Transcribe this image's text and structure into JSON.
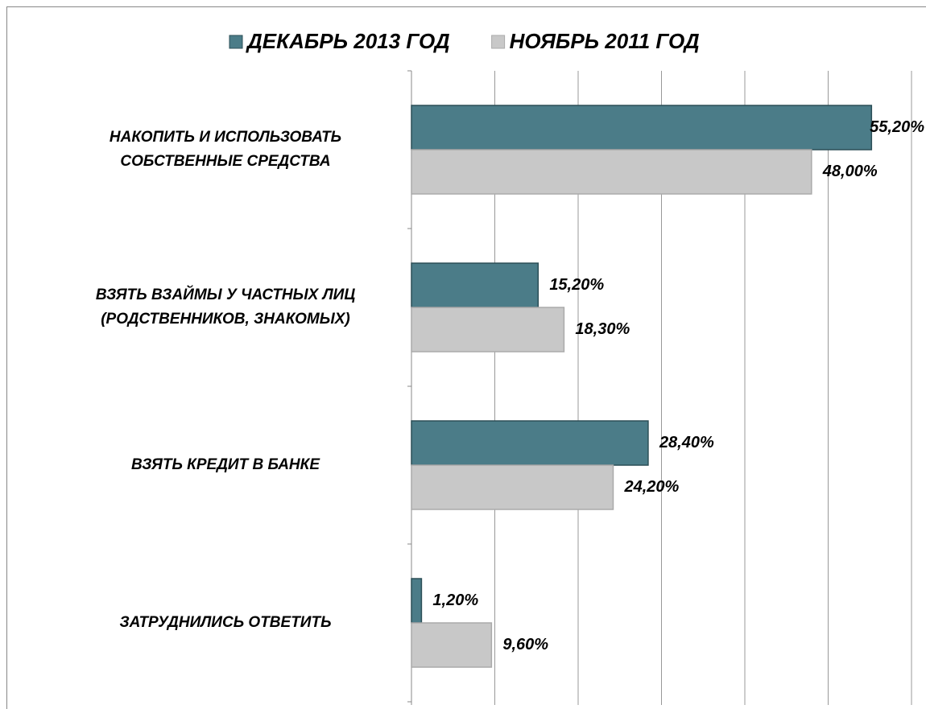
{
  "chart_data": {
    "type": "hbar",
    "categories": [
      "НАКОПИТЬ И ИСПОЛЬЗОВАТЬ\nСОБСТВЕННЫЕ СРЕДСТВА",
      "ВЗЯТЬ ВЗАЙМЫ У ЧАСТНЫХ ЛИЦ\n(РОДСТВЕННИКОВ, ЗНАКОМЫХ)",
      "ВЗЯТЬ КРЕДИТ В БАНКЕ",
      "ЗАТРУДНИЛИСЬ ОТВЕТИТЬ"
    ],
    "series": [
      {
        "name": "ДЕКАБРЬ 2013 ГОД",
        "color": "#4b7c88",
        "values": [
          55.2,
          15.2,
          28.4,
          1.2
        ],
        "value_labels": [
          "55,20%",
          "15,20%",
          "28,40%",
          "1,20%"
        ]
      },
      {
        "name": "НОЯБРЬ 2011 ГОД",
        "color": "#c8c8c8",
        "values": [
          48.0,
          18.3,
          24.2,
          9.6
        ],
        "value_labels": [
          "48,00%",
          "18,30%",
          "24,20%",
          "9,60%"
        ]
      }
    ],
    "xlim": [
      0,
      60
    ],
    "xticks": [
      0,
      10,
      20,
      30,
      40,
      50,
      60
    ],
    "grid": true,
    "legend": "top"
  }
}
